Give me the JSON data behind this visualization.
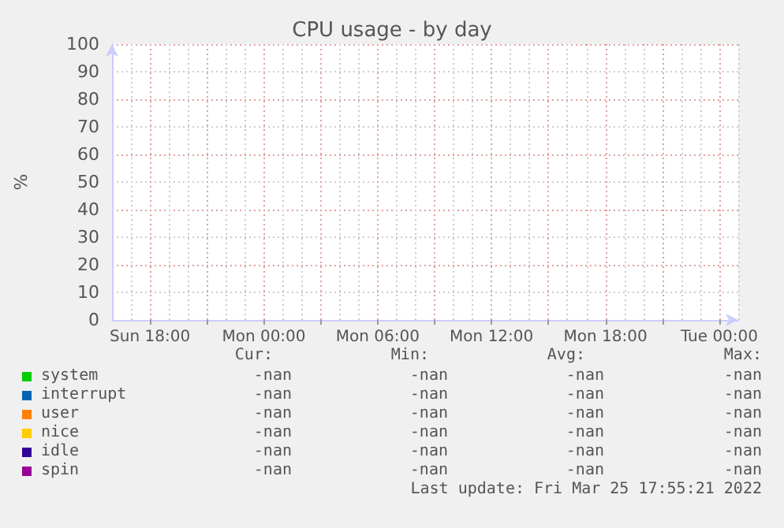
{
  "chart_data": {
    "type": "area",
    "title": "CPU usage - by day",
    "ylabel": "%",
    "categories": [
      null,
      null,
      "Sun 18:00",
      null,
      null,
      null,
      null,
      null,
      "Mon 00:00",
      null,
      null,
      null,
      null,
      null,
      "Mon 06:00",
      null,
      null,
      null,
      null,
      null,
      "Mon 12:00",
      null,
      null,
      null,
      null,
      null,
      "Mon 18:00",
      null,
      null,
      null,
      null,
      null,
      "Tue 00:00",
      null
    ],
    "ylim": [
      0,
      100
    ],
    "yticks": [
      0,
      10,
      20,
      30,
      40,
      50,
      60,
      70,
      80,
      90,
      100
    ],
    "grid": true,
    "legend": "bottom",
    "series": [
      {
        "name": "system",
        "color": "#00cc00",
        "values": [
          null,
          null,
          null,
          null,
          null,
          null,
          null,
          null,
          null,
          null,
          null,
          null,
          null,
          null,
          null,
          null,
          null,
          null,
          null,
          null,
          null,
          null,
          null,
          null,
          null,
          null,
          null,
          null,
          null,
          null,
          null,
          null,
          null,
          null
        ]
      },
      {
        "name": "interrupt",
        "color": "#0066b3",
        "values": [
          null,
          null,
          null,
          null,
          null,
          null,
          null,
          null,
          null,
          null,
          null,
          null,
          null,
          null,
          null,
          null,
          null,
          null,
          null,
          null,
          null,
          null,
          null,
          null,
          null,
          null,
          null,
          null,
          null,
          null,
          null,
          null,
          null,
          null
        ]
      },
      {
        "name": "user",
        "color": "#ff8000",
        "values": [
          null,
          null,
          null,
          null,
          null,
          null,
          null,
          null,
          null,
          null,
          null,
          null,
          null,
          null,
          null,
          null,
          null,
          null,
          null,
          null,
          null,
          null,
          null,
          null,
          null,
          null,
          null,
          null,
          null,
          null,
          null,
          null,
          null,
          null
        ]
      },
      {
        "name": "nice",
        "color": "#ffcc00",
        "values": [
          null,
          null,
          null,
          null,
          null,
          null,
          null,
          null,
          null,
          null,
          null,
          null,
          null,
          null,
          null,
          null,
          null,
          null,
          null,
          null,
          null,
          null,
          null,
          null,
          null,
          null,
          null,
          null,
          null,
          null,
          null,
          null,
          null,
          null
        ]
      },
      {
        "name": "idle",
        "color": "#330099",
        "values": [
          null,
          null,
          null,
          null,
          null,
          null,
          null,
          null,
          null,
          null,
          null,
          null,
          null,
          null,
          null,
          null,
          null,
          null,
          null,
          null,
          null,
          null,
          null,
          null,
          null,
          null,
          null,
          null,
          null,
          null,
          null,
          null,
          null,
          null
        ]
      },
      {
        "name": "spin",
        "color": "#990099",
        "values": [
          null,
          null,
          null,
          null,
          null,
          null,
          null,
          null,
          null,
          null,
          null,
          null,
          null,
          null,
          null,
          null,
          null,
          null,
          null,
          null,
          null,
          null,
          null,
          null,
          null,
          null,
          null,
          null,
          null,
          null,
          null,
          null,
          null,
          null
        ]
      }
    ],
    "annotations": [
      "Cur:",
      "Min:",
      "Avg:",
      "Max:",
      "-nan",
      "-nan",
      "-nan",
      "-nan",
      "-nan",
      "-nan",
      "-nan",
      "-nan",
      "-nan",
      "-nan",
      "-nan",
      "-nan",
      "-nan",
      "-nan",
      "-nan",
      "-nan",
      "-nan",
      "-nan",
      "-nan",
      "-nan",
      "-nan",
      "-nan",
      "-nan",
      "-nan",
      "Last update: Fri Mar 25 17:55:21 2022"
    ]
  }
}
